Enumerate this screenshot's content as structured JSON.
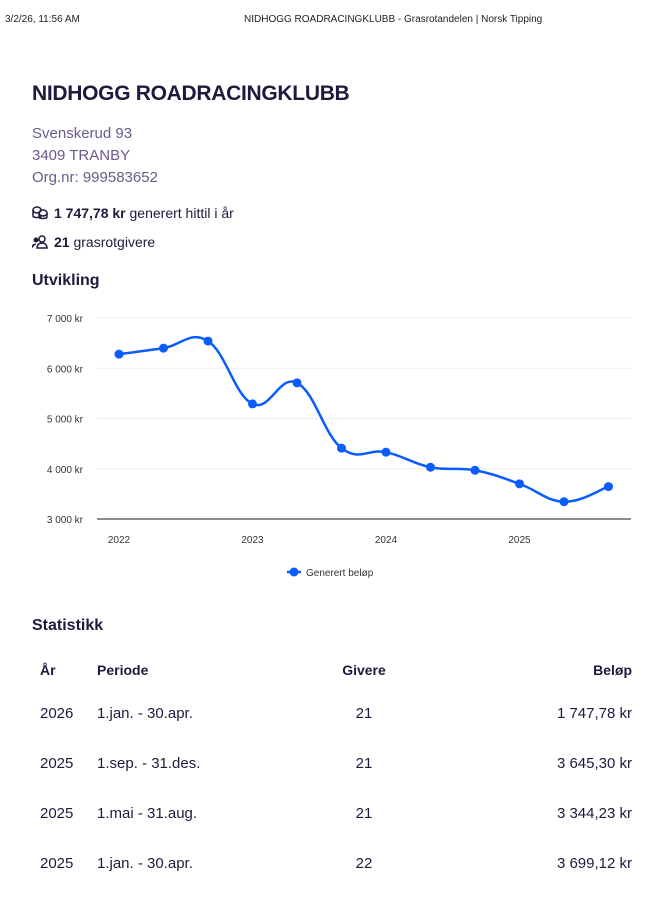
{
  "header": {
    "date": "3/2/26, 11:56 AM",
    "title": "NIDHOGG ROADRACINGKLUBB - Grasrotandelen | Norsk Tipping"
  },
  "club": {
    "name": "NIDHOGG ROADRACINGKLUBB",
    "street": "Svenskerud 93",
    "postal": "3409 TRANBY",
    "orgnr": "Org.nr: 999583652"
  },
  "stats": {
    "amount": "1 747,78 kr",
    "amount_text": "generert hittil i år",
    "givers": "21",
    "givers_text": "grasrotgivere"
  },
  "section_chart": "Utvikling",
  "section_stats": "Statistikk",
  "chart_data": {
    "type": "line",
    "title": "Utvikling",
    "x": [
      "2022 T1",
      "2022 T2",
      "2022 T3",
      "2023 T1",
      "2023 T2",
      "2023 T3",
      "2024 T1",
      "2024 T2",
      "2024 T3",
      "2025 T1",
      "2025 T2",
      "2025 T3"
    ],
    "x_tick_labels": [
      "2022",
      "2023",
      "2024",
      "2025"
    ],
    "y_tick_labels": [
      "3 000 kr",
      "4 000 kr",
      "5 000 kr",
      "6 000 kr",
      "7 000 kr"
    ],
    "ylim": [
      3000,
      7000
    ],
    "series": [
      {
        "name": "Generert beløp",
        "color": "#0a5cff",
        "values": [
          6280,
          6400,
          6540,
          5290,
          5710,
          4410,
          4330,
          4030,
          3970,
          3699.12,
          3344.23,
          3645.3
        ]
      }
    ],
    "legend": "bottom",
    "grid": true
  },
  "table": {
    "headers": {
      "year": "År",
      "period": "Periode",
      "givers": "Givere",
      "amount": "Beløp"
    },
    "rows": [
      {
        "year": "2026",
        "period": "1.jan. - 30.apr.",
        "givers": "21",
        "amount": "1 747,78 kr"
      },
      {
        "year": "2025",
        "period": "1.sep. - 31.des.",
        "givers": "21",
        "amount": "3 645,30 kr"
      },
      {
        "year": "2025",
        "period": "1.mai - 31.aug.",
        "givers": "21",
        "amount": "3 344,23 kr"
      },
      {
        "year": "2025",
        "period": "1.jan. - 30.apr.",
        "givers": "22",
        "amount": "3 699,12 kr"
      }
    ]
  }
}
